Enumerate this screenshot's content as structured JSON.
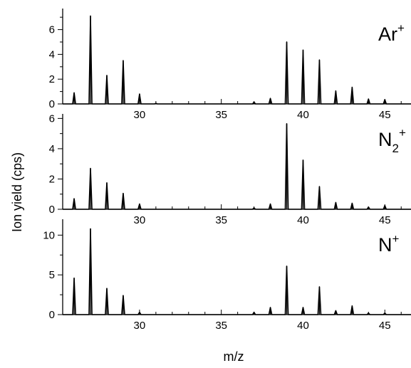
{
  "colors": {
    "line": "#000000",
    "background": "#ffffff"
  },
  "chart_data": {
    "type": "line",
    "xlabel": "m/z",
    "ylabel": "Ion yield (cps)",
    "xlim": [
      25.3,
      46.6
    ],
    "x_ticks": [
      30,
      35,
      40,
      45
    ],
    "x_ticks_minor_step": 1,
    "grid": false,
    "panels": [
      {
        "name": "Ar+",
        "label_main": "Ar",
        "label_sub": "",
        "label_sup": "+",
        "ylim": [
          0,
          7.7
        ],
        "y_ticks": [
          0,
          2,
          4,
          6
        ],
        "peaks": [
          {
            "x": 26,
            "y": 0.9
          },
          {
            "x": 27,
            "y": 7.1
          },
          {
            "x": 28,
            "y": 2.3
          },
          {
            "x": 29,
            "y": 3.5
          },
          {
            "x": 30,
            "y": 0.8
          },
          {
            "x": 31,
            "y": 0.05
          },
          {
            "x": 37,
            "y": 0.15
          },
          {
            "x": 38,
            "y": 0.45
          },
          {
            "x": 39,
            "y": 5.0
          },
          {
            "x": 40,
            "y": 4.35
          },
          {
            "x": 41,
            "y": 3.55
          },
          {
            "x": 42,
            "y": 1.05
          },
          {
            "x": 43,
            "y": 1.35
          },
          {
            "x": 44,
            "y": 0.4
          },
          {
            "x": 45,
            "y": 0.35
          }
        ]
      },
      {
        "name": "N2+",
        "label_main": "N",
        "label_sub": "2",
        "label_sup": "+",
        "ylim": [
          0,
          6.3
        ],
        "y_ticks": [
          0,
          2,
          4,
          6
        ],
        "peaks": [
          {
            "x": 26,
            "y": 0.7
          },
          {
            "x": 27,
            "y": 2.7
          },
          {
            "x": 28,
            "y": 1.75
          },
          {
            "x": 29,
            "y": 1.05
          },
          {
            "x": 30,
            "y": 0.35
          },
          {
            "x": 37,
            "y": 0.1
          },
          {
            "x": 38,
            "y": 0.35
          },
          {
            "x": 39,
            "y": 5.65
          },
          {
            "x": 40,
            "y": 3.25
          },
          {
            "x": 41,
            "y": 1.5
          },
          {
            "x": 42,
            "y": 0.45
          },
          {
            "x": 43,
            "y": 0.4
          },
          {
            "x": 44,
            "y": 0.15
          },
          {
            "x": 45,
            "y": 0.25
          }
        ]
      },
      {
        "name": "N+",
        "label_main": "N",
        "label_sub": "",
        "label_sup": "+",
        "ylim": [
          0,
          12.0
        ],
        "y_ticks": [
          0,
          5,
          10
        ],
        "peaks": [
          {
            "x": 26,
            "y": 4.6
          },
          {
            "x": 27,
            "y": 10.8
          },
          {
            "x": 28,
            "y": 3.3
          },
          {
            "x": 29,
            "y": 2.4
          },
          {
            "x": 30,
            "y": 0.3
          },
          {
            "x": 37,
            "y": 0.3
          },
          {
            "x": 38,
            "y": 0.9
          },
          {
            "x": 39,
            "y": 6.1
          },
          {
            "x": 40,
            "y": 0.9
          },
          {
            "x": 41,
            "y": 3.5
          },
          {
            "x": 42,
            "y": 0.5
          },
          {
            "x": 43,
            "y": 1.1
          },
          {
            "x": 44,
            "y": 0.2
          },
          {
            "x": 45,
            "y": 0.2
          }
        ]
      }
    ]
  }
}
